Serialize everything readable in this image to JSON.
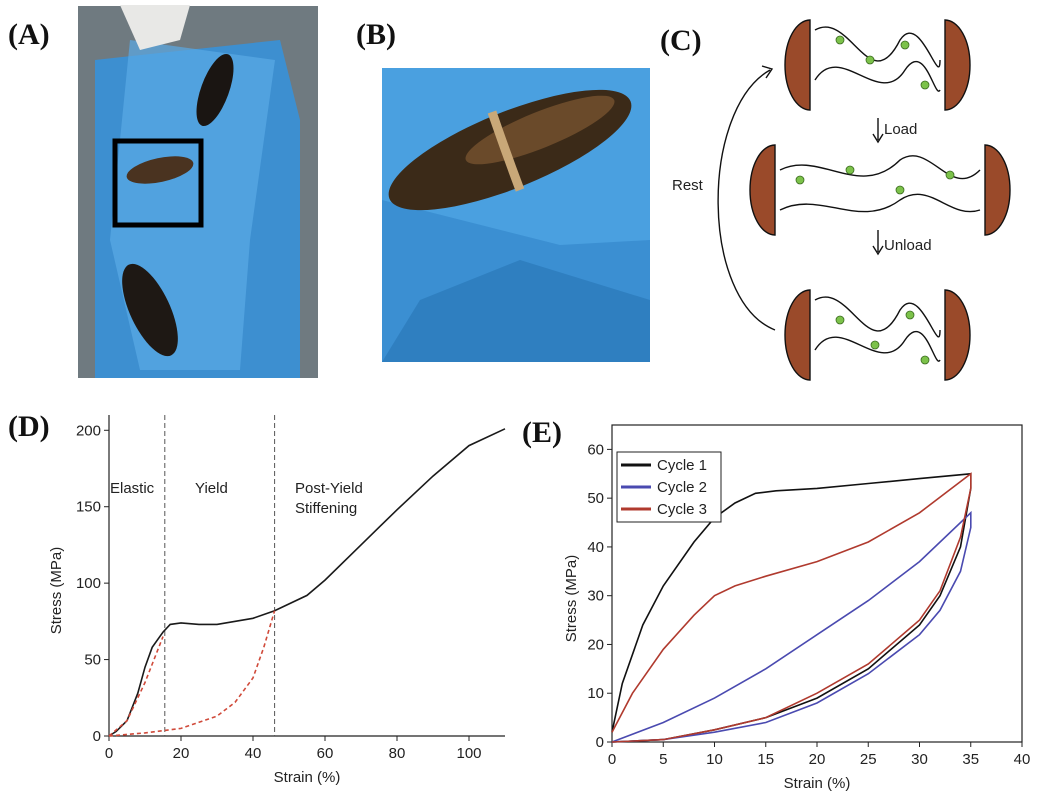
{
  "panel_labels": [
    "(A)",
    "(B)",
    "(C)",
    "(D)",
    "(E)"
  ],
  "diagram": {
    "load": "Load",
    "unload": "Unload",
    "rest": "Rest"
  },
  "chart_data": [
    {
      "type": "line",
      "xlabel": "Strain (%)",
      "ylabel": "Stress (MPa)",
      "xlim": [
        0,
        110
      ],
      "ylim": [
        0,
        210
      ],
      "xticks": [
        0,
        20,
        40,
        60,
        80,
        100
      ],
      "yticks": [
        0,
        50,
        100,
        150,
        200
      ],
      "vlines": [
        15.5,
        46
      ],
      "annotations": [
        "Elastic",
        "Yield",
        "Post-Yield",
        "Stiffening"
      ],
      "series": [
        {
          "color": "#1a1a1a",
          "dash": false,
          "x": [
            0,
            2,
            5,
            8,
            10,
            12,
            15,
            17,
            20,
            25,
            30,
            40,
            46,
            55,
            60,
            70,
            80,
            90,
            100,
            110
          ],
          "values": [
            0,
            3,
            10,
            28,
            45,
            58,
            68,
            73,
            74,
            73,
            73,
            77,
            82,
            92,
            102,
            125,
            148,
            170,
            190,
            201
          ]
        },
        {
          "color": "#d04a3a",
          "dash": true,
          "x": [
            0,
            5,
            10,
            15
          ],
          "values": [
            0,
            10,
            35,
            65
          ]
        },
        {
          "color": "#d04a3a",
          "dash": true,
          "x": [
            0,
            10,
            20,
            30,
            35,
            40,
            43,
            46
          ],
          "values": [
            0,
            2,
            5,
            13,
            22,
            38,
            58,
            82
          ]
        }
      ]
    },
    {
      "type": "line",
      "xlabel": "Strain (%)",
      "ylabel": "Stress (MPa)",
      "xlim": [
        0,
        40
      ],
      "ylim": [
        0,
        65
      ],
      "xticks": [
        0,
        5,
        10,
        15,
        20,
        25,
        30,
        35,
        40
      ],
      "yticks": [
        0,
        10,
        20,
        30,
        40,
        50,
        60
      ],
      "legend": "upper left",
      "series": [
        {
          "name": "Cycle 1",
          "color": "#111111",
          "x": [
            0,
            1,
            3,
            5,
            8,
            10,
            12,
            14,
            16,
            20,
            25,
            30,
            35,
            35,
            34,
            32,
            30,
            25,
            20,
            15,
            10,
            5,
            0
          ],
          "values": [
            2,
            12,
            24,
            32,
            41,
            46,
            49,
            51,
            51.5,
            52,
            53,
            54,
            55,
            52,
            40,
            30,
            24,
            15,
            9,
            5,
            2.5,
            0.5,
            0
          ]
        },
        {
          "name": "Cycle 2",
          "color": "#4a4ab0",
          "x": [
            0,
            5,
            10,
            15,
            20,
            25,
            30,
            35,
            35,
            34,
            32,
            30,
            25,
            20,
            15,
            10,
            5,
            0
          ],
          "values": [
            0,
            4,
            9,
            15,
            22,
            29,
            37,
            47,
            44,
            35,
            27,
            22,
            14,
            8,
            4,
            2,
            0.5,
            0
          ]
        },
        {
          "name": "Cycle 3",
          "color": "#b03a2e",
          "x": [
            0,
            2,
            5,
            8,
            10,
            12,
            15,
            20,
            25,
            30,
            35,
            35,
            34,
            32,
            30,
            25,
            20,
            15,
            10,
            5,
            0
          ],
          "values": [
            2,
            10,
            19,
            26,
            30,
            32,
            34,
            37,
            41,
            47,
            55,
            52,
            42,
            31,
            25,
            16,
            10,
            5,
            2.5,
            0.5,
            0
          ]
        }
      ]
    }
  ]
}
